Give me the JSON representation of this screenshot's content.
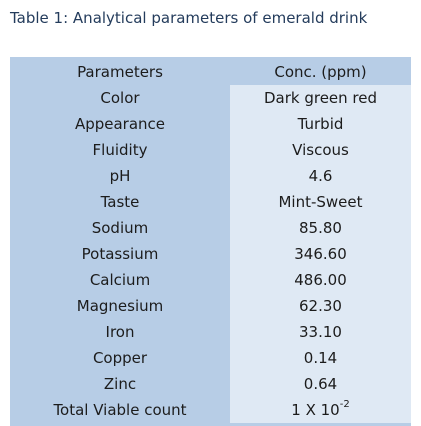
{
  "caption": "Table 1: Analytical parameters of emerald drink",
  "table": {
    "headers": {
      "parameter": "Parameters",
      "conc": "Conc. (ppm)"
    },
    "rows": [
      {
        "parameter": "Color",
        "value": "Dark green red"
      },
      {
        "parameter": "Appearance",
        "value": "Turbid"
      },
      {
        "parameter": "Fluidity",
        "value": "Viscous"
      },
      {
        "parameter": "pH",
        "value": "4.6"
      },
      {
        "parameter": "Taste",
        "value": "Mint-Sweet"
      },
      {
        "parameter": "Sodium",
        "value": "85.80"
      },
      {
        "parameter": "Potassium",
        "value": "346.60"
      },
      {
        "parameter": "Calcium",
        "value": "486.00"
      },
      {
        "parameter": "Magnesium",
        "value": "62.30"
      },
      {
        "parameter": "Iron",
        "value": "33.10"
      },
      {
        "parameter": "Copper",
        "value": "0.14"
      },
      {
        "parameter": "Zinc",
        "value": "0.64"
      },
      {
        "parameter": "Total Viable count",
        "value_base": "1 X 10",
        "value_exponent": "-2"
      }
    ]
  },
  "colors": {
    "caption_text": "#243c5c",
    "table_background": "#b7cde6",
    "value_cell_background": "#dfe9f4",
    "cell_text": "#1c1c1c"
  }
}
